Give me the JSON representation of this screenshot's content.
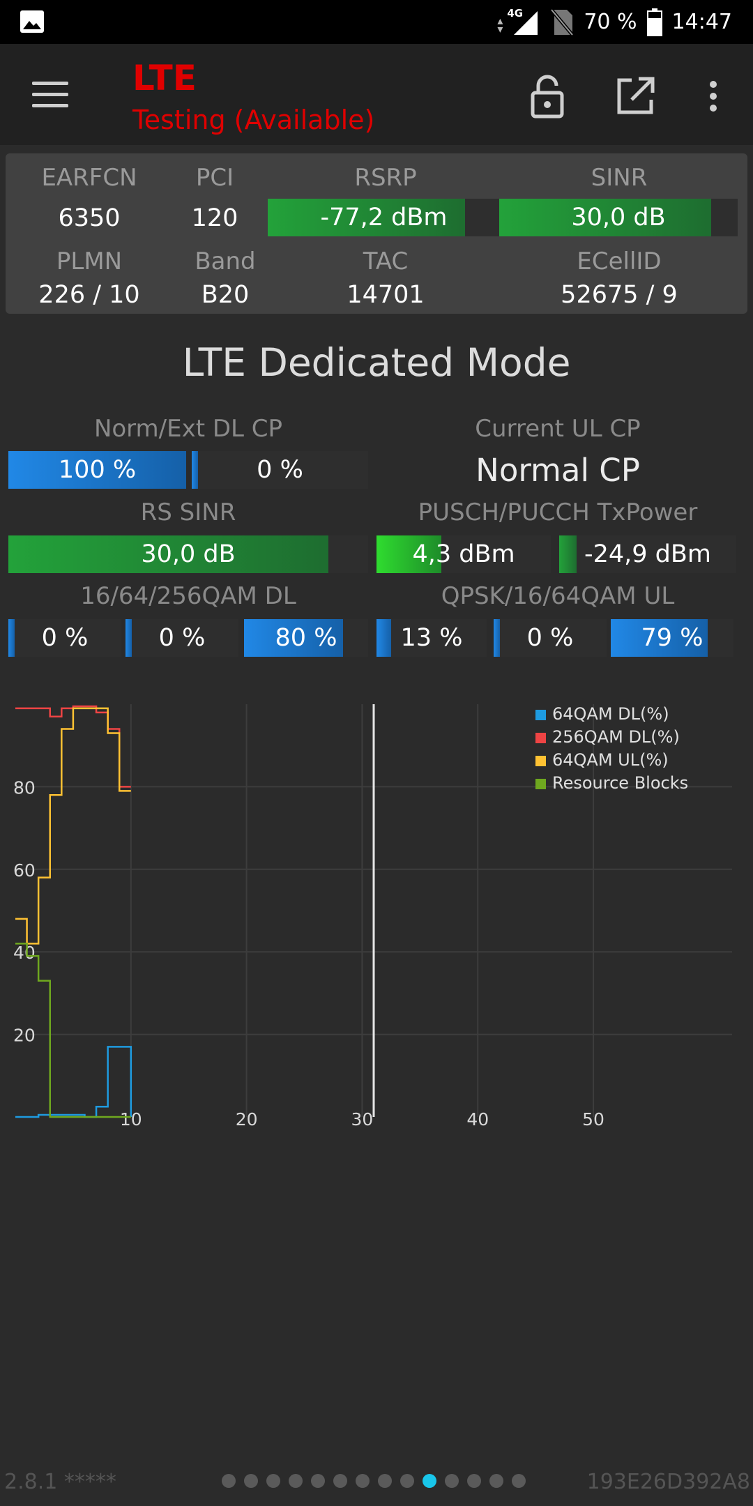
{
  "status_bar": {
    "network": "4G",
    "battery": "70 %",
    "time": "14:47",
    "icons": [
      "gallery-icon",
      "signal-icon",
      "no-sim-icon",
      "battery-icon"
    ]
  },
  "app_bar": {
    "title": "LTE",
    "subtitle": "Testing (Available)",
    "icons": [
      "menu-icon",
      "lock-open-icon",
      "open-external-icon",
      "more-vert-icon"
    ]
  },
  "cell_info": {
    "earfcn_label": "EARFCN",
    "earfcn": "6350",
    "pci_label": "PCI",
    "pci": "120",
    "rsrp_label": "RSRP",
    "rsrp": "-77,2 dBm",
    "rsrp_fill": 0.85,
    "sinr_label": "SINR",
    "sinr": "30,0 dB",
    "sinr_fill": 0.89,
    "plmn_label": "PLMN",
    "plmn": "226 / 10",
    "band_label": "Band",
    "band": "B20",
    "tac_label": "TAC",
    "tac": "14701",
    "ecellid_label": "ECellID",
    "ecellid": "52675 / 9"
  },
  "dedicated": {
    "title": "LTE Dedicated Mode",
    "cp_label": "Norm/Ext DL CP",
    "cp_norm": "100 %",
    "cp_norm_fill": 1.0,
    "cp_ext": "0 %",
    "cp_ext_fill": 0.0,
    "ul_cp_label": "Current UL CP",
    "ul_cp": "Normal CP",
    "rs_sinr_label": "RS SINR",
    "rs_sinr": "30,0 dB",
    "rs_sinr_fill": 0.89,
    "txpower_label": "PUSCH/PUCCH TxPower",
    "pusch": "4,3 dBm",
    "pusch_fill": 0.37,
    "pucch": "-24,9 dBm",
    "pucch_fill": 0.1,
    "qam_dl_label": "16/64/256QAM DL",
    "qam_dl": [
      {
        "value": "0 %",
        "fill": 0.0
      },
      {
        "value": "0 %",
        "fill": 0.0
      },
      {
        "value": "80 %",
        "fill": 0.8
      }
    ],
    "qam_ul_label": "QPSK/16/64QAM UL",
    "qam_ul": [
      {
        "value": "13 %",
        "fill": 0.13
      },
      {
        "value": "0 %",
        "fill": 0.0
      },
      {
        "value": "79 %",
        "fill": 0.79
      }
    ]
  },
  "chart_data": {
    "type": "line",
    "title": "",
    "xlabel": "",
    "ylabel": "",
    "xlim": [
      0,
      62
    ],
    "ylim": [
      0,
      100
    ],
    "x_ticks": [
      10,
      20,
      30,
      40,
      50
    ],
    "y_ticks": [
      20,
      40,
      60,
      80
    ],
    "grid": true,
    "legend_position": "top-right",
    "cursor_x": 31,
    "series": [
      {
        "name": "64QAM DL(%)",
        "color": "#1e9be0",
        "x": [
          0,
          1,
          2,
          3,
          4,
          5,
          6,
          7,
          8,
          9,
          10
        ],
        "y": [
          0,
          0,
          0.5,
          0.5,
          0.5,
          0.5,
          0,
          2.5,
          17,
          17,
          0
        ]
      },
      {
        "name": "256QAM DL(%)",
        "color": "#ee4444",
        "x": [
          0,
          1,
          2,
          3,
          4,
          5,
          6,
          7,
          8,
          9,
          10
        ],
        "y": [
          99,
          99,
          99,
          97,
          99,
          99.5,
          99.5,
          98,
          94,
          80,
          80
        ]
      },
      {
        "name": "64QAM UL(%)",
        "color": "#ffc233",
        "x": [
          0,
          1,
          2,
          3,
          4,
          5,
          6,
          7,
          8,
          9,
          10
        ],
        "y": [
          48,
          42,
          58,
          78,
          94,
          99,
          99,
          99,
          93,
          79,
          79
        ]
      },
      {
        "name": "Resource Blocks",
        "color": "#6fa81f",
        "x": [
          0,
          1,
          2,
          3,
          4,
          5,
          6,
          7,
          8,
          9,
          10
        ],
        "y": [
          42,
          39,
          33,
          0,
          0,
          0,
          0,
          0,
          0,
          0,
          0
        ]
      }
    ]
  },
  "footer": {
    "version": "2.8.1 *****",
    "device_id": "193E26D392A8",
    "page_count": 14,
    "active_page": 9
  }
}
